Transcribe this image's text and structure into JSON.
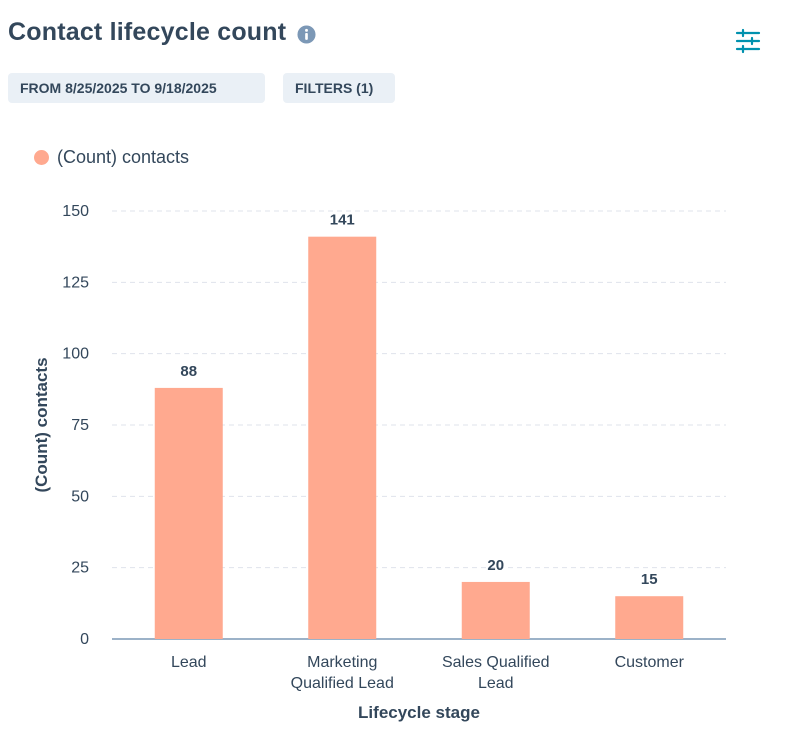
{
  "header": {
    "title": "Contact lifecycle count",
    "info_icon": "info-icon",
    "settings_icon": "sliders-icon"
  },
  "filters": {
    "date_range_label": "FROM 8/25/2025 TO 9/18/2025",
    "filters_label": "FILTERS (1)"
  },
  "colors": {
    "bar": "#ffa98f",
    "text": "#33475b",
    "pill_bg": "#eaf0f6",
    "grid": "#dfe3eb",
    "axis": "#7c98b6",
    "info_icon": "#7c98b6",
    "settings_icon": "#0091ae"
  },
  "chart_data": {
    "type": "bar",
    "categories": [
      [
        "Lead"
      ],
      [
        "Marketing",
        "Qualified Lead"
      ],
      [
        "Sales Qualified",
        "Lead"
      ],
      [
        "Customer"
      ]
    ],
    "series": [
      {
        "name": "(Count) contacts",
        "values": [
          88,
          141,
          20,
          15
        ]
      }
    ],
    "data_labels": [
      "88",
      "141",
      "20",
      "15"
    ],
    "xlabel": "Lifecycle stage",
    "ylabel": "(Count) contacts",
    "yticks": [
      0,
      25,
      50,
      75,
      100,
      125,
      150
    ],
    "ylim": [
      0,
      150
    ],
    "grid": true,
    "legend": "top-left"
  }
}
